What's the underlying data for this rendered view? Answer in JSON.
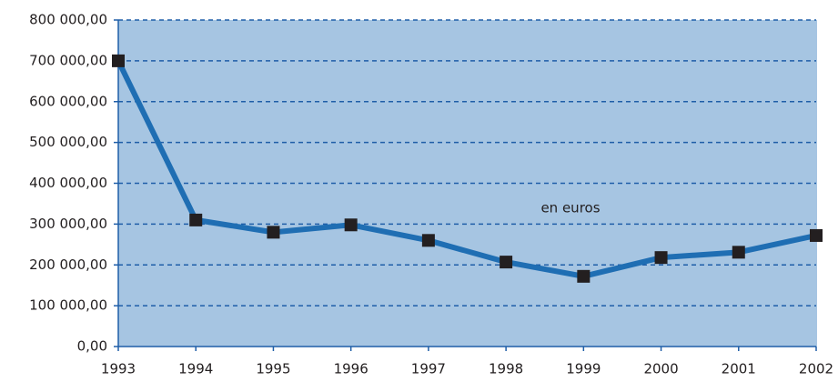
{
  "chart_data": {
    "type": "line",
    "annotation": "en euros",
    "x": [
      1993,
      1994,
      1995,
      1996,
      1997,
      1998,
      1999,
      2000,
      2001,
      2002
    ],
    "values": [
      700000,
      310000,
      280000,
      298000,
      260000,
      207000,
      172000,
      218000,
      231000,
      272000
    ],
    "color": "#1f6eb3",
    "marker_color": "#231f20",
    "background": "#a6c5e2",
    "grid_color": "#1f5ea8",
    "xlim": [
      1993,
      2002
    ],
    "xticks": [
      1993,
      1994,
      1995,
      1996,
      1997,
      1998,
      1999,
      2000,
      2001,
      2002
    ],
    "ylim": [
      0,
      800000
    ],
    "yticks": [
      {
        "value": 0,
        "label": "0,00"
      },
      {
        "value": 100000,
        "label": "100 000,00"
      },
      {
        "value": 200000,
        "label": "200 000,00"
      },
      {
        "value": 300000,
        "label": "300 000,00"
      },
      {
        "value": 400000,
        "label": "400 000,00"
      },
      {
        "value": 500000,
        "label": "500 000,00"
      },
      {
        "value": 600000,
        "label": "600 000,00"
      },
      {
        "value": 700000,
        "label": "700 000,00"
      },
      {
        "value": 800000,
        "label": "800 000,00"
      }
    ],
    "grid": true
  }
}
